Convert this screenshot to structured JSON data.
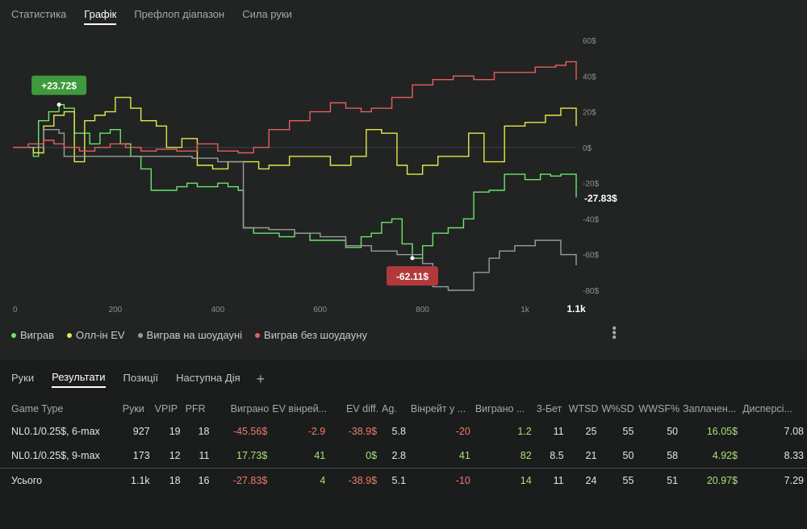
{
  "tabs": [
    "Статистика",
    "Графік",
    "Префлоп діапазон",
    "Сила руки"
  ],
  "active_tab": "Графік",
  "chart_data": {
    "type": "line",
    "x_ticks": [
      "0",
      "200",
      "400",
      "600",
      "800",
      "1k",
      "1.1k"
    ],
    "y_ticks": [
      "60$",
      "40$",
      "20$",
      "0$",
      "-20$",
      "-40$",
      "-60$",
      "-80$"
    ],
    "ylim": [
      -80,
      60
    ],
    "xlim": [
      0,
      1100
    ],
    "end_label": "-27.83$",
    "max_annotation": "+23.72$",
    "min_annotation": "-62.11$",
    "series": [
      {
        "name": "Виграв",
        "color": "#6de36a",
        "x": [
          0,
          20,
          40,
          50,
          70,
          90,
          100,
          120,
          150,
          170,
          190,
          210,
          230,
          250,
          270,
          300,
          320,
          340,
          360,
          380,
          400,
          420,
          440,
          450,
          470,
          500,
          520,
          550,
          580,
          600,
          620,
          650,
          680,
          700,
          720,
          740,
          760,
          780,
          800,
          820,
          850,
          880,
          900,
          930,
          960,
          1000,
          1030,
          1050,
          1070,
          1100
        ],
        "y": [
          0,
          0,
          -5,
          15,
          20,
          24,
          22,
          8,
          2,
          8,
          10,
          2,
          -5,
          -12,
          -24,
          -24,
          -22,
          -20,
          -22,
          -22,
          -20,
          -22,
          -24,
          -45,
          -48,
          -48,
          -50,
          -48,
          -52,
          -52,
          -52,
          -56,
          -50,
          -48,
          -42,
          -40,
          -54,
          -62,
          -55,
          -48,
          -45,
          -40,
          -25,
          -24,
          -15,
          -18,
          -15,
          -16,
          -15,
          -28
        ]
      },
      {
        "name": "Олл-ін EV",
        "color": "#e6e64a",
        "x": [
          0,
          20,
          40,
          60,
          80,
          100,
          120,
          140,
          160,
          180,
          200,
          230,
          250,
          280,
          300,
          330,
          360,
          390,
          420,
          450,
          480,
          500,
          540,
          580,
          620,
          660,
          690,
          720,
          750,
          770,
          800,
          830,
          860,
          890,
          920,
          960,
          1000,
          1040,
          1070,
          1100
        ],
        "y": [
          0,
          0,
          -3,
          12,
          18,
          20,
          -8,
          15,
          18,
          20,
          28,
          22,
          15,
          12,
          0,
          5,
          -10,
          -12,
          -8,
          -8,
          -12,
          -10,
          -5,
          -5,
          -10,
          -5,
          10,
          8,
          -10,
          -15,
          -10,
          -5,
          -5,
          8,
          -8,
          12,
          14,
          18,
          22,
          12
        ]
      },
      {
        "name": "Виграв на шоудауні",
        "color": "#9a9c9b",
        "x": [
          0,
          30,
          60,
          90,
          100,
          150,
          200,
          250,
          300,
          350,
          400,
          450,
          500,
          550,
          600,
          650,
          700,
          750,
          800,
          820,
          850,
          870,
          900,
          930,
          950,
          980,
          1000,
          1020,
          1050,
          1070,
          1100
        ],
        "y": [
          0,
          0,
          10,
          8,
          -5,
          -5,
          -5,
          -5,
          -5,
          -6,
          -8,
          -45,
          -46,
          -48,
          -50,
          -55,
          -58,
          -60,
          -65,
          -78,
          -80,
          -80,
          -70,
          -62,
          -58,
          -55,
          -55,
          -52,
          -52,
          -60,
          -66
        ]
      },
      {
        "name": "Виграв без шоудауну",
        "color": "#e85d5d",
        "x": [
          0,
          30,
          60,
          80,
          100,
          130,
          160,
          190,
          220,
          250,
          280,
          320,
          360,
          400,
          440,
          470,
          500,
          540,
          580,
          620,
          650,
          680,
          700,
          740,
          780,
          820,
          860,
          900,
          940,
          980,
          1020,
          1060,
          1080,
          1100
        ],
        "y": [
          0,
          2,
          4,
          2,
          0,
          -2,
          0,
          2,
          0,
          -2,
          -1,
          -2,
          2,
          -2,
          -3,
          0,
          10,
          15,
          20,
          25,
          22,
          20,
          22,
          28,
          35,
          38,
          40,
          38,
          42,
          42,
          45,
          46,
          48,
          38
        ]
      }
    ]
  },
  "legend": [
    {
      "label": "Виграв",
      "color": "#6de36a"
    },
    {
      "label": "Олл-ін EV",
      "color": "#e6e64a"
    },
    {
      "label": "Виграв на шоудауні",
      "color": "#9a9c9b"
    },
    {
      "label": "Виграв без шоудауну",
      "color": "#e85d5d"
    }
  ],
  "bottom_tabs": [
    "Руки",
    "Результати",
    "Позиції",
    "Наступна Дія"
  ],
  "bottom_active": "Результати",
  "plus_icon": "+",
  "table": {
    "headers": [
      "Game Type",
      "Руки",
      "VPIP",
      "PFR",
      "Виграно",
      "EV вінрей...",
      "EV diff.",
      "Ag.",
      "Вінрейт у ...",
      "Виграно ...",
      "3-Бет",
      "WTSD",
      "W%SD",
      "WWSF%",
      "Заплачен...",
      "Дисперсі..."
    ],
    "rows": [
      [
        "NL0.1/0.25$, 6-max",
        "927",
        "19",
        "18",
        "-45.56$",
        "-2.9",
        "-38.9$",
        "5.8",
        "-20",
        "1.2",
        "11",
        "25",
        "55",
        "50",
        "16.05$",
        "7.08"
      ],
      [
        "NL0.1/0.25$, 9-max",
        "173",
        "12",
        "11",
        "17.73$",
        "41",
        "0$",
        "2.8",
        "41",
        "82",
        "8.5",
        "21",
        "50",
        "58",
        "4.92$",
        "8.33"
      ]
    ],
    "total": [
      "Усього",
      "1.1k",
      "18",
      "16",
      "-27.83$",
      "4",
      "-38.9$",
      "5.1",
      "-10",
      "14",
      "11",
      "24",
      "55",
      "51",
      "20.97$",
      "7.29"
    ]
  }
}
